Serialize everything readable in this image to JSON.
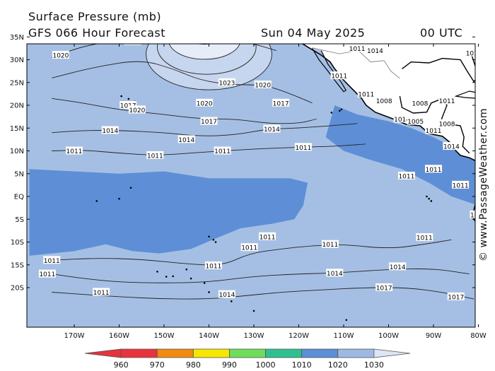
{
  "header": {
    "title": "Surface Pressure (mb)",
    "subtitle": "GFS 066 Hour Forecast",
    "date": "Sun 04 May 2025",
    "time": "00 UTC"
  },
  "credit": "© www.PassageWeather.com",
  "axes": {
    "lat_labels": [
      "35N",
      "30N",
      "25N",
      "20N",
      "15N",
      "10N",
      "5N",
      "EQ",
      "5S",
      "10S",
      "15S",
      "20S"
    ],
    "lon_labels": [
      "170W",
      "160W",
      "150W",
      "140W",
      "130W",
      "120W",
      "110W",
      "100W",
      "90W",
      "80W"
    ]
  },
  "colorbar": {
    "ticks": [
      "960",
      "970",
      "980",
      "990",
      "1000",
      "1010",
      "1020",
      "1030"
    ],
    "colors": [
      "#e8323c",
      "#f08a10",
      "#f7e600",
      "#6fdc5a",
      "#2fc08f",
      "#5b8fd6",
      "#9db9e3",
      "#dce6f5"
    ]
  },
  "map": {
    "colors": {
      "land": "#ffffff",
      "low": "#5e8fd6",
      "mid": "#a5bfe4",
      "high": "#c6d6ee",
      "veryhigh": "#e6edf8"
    },
    "isobar_labels": [
      {
        "t": "1014",
        "lon": -153,
        "lat": 36
      },
      {
        "t": "1017",
        "lon": -157,
        "lat": 34
      },
      {
        "t": "1020",
        "lon": -173,
        "lat": 31
      },
      {
        "t": "1023",
        "lon": -136,
        "lat": 25
      },
      {
        "t": "1020",
        "lon": -128,
        "lat": 24.5
      },
      {
        "t": "1020",
        "lon": -141,
        "lat": 20.5
      },
      {
        "t": "1017",
        "lon": -158,
        "lat": 20
      },
      {
        "t": "1020",
        "lon": -156,
        "lat": 19
      },
      {
        "t": "1017",
        "lon": -124,
        "lat": 20.5
      },
      {
        "t": "1017",
        "lon": -140,
        "lat": 16.5
      },
      {
        "t": "1014",
        "lon": -162,
        "lat": 14.5
      },
      {
        "t": "1014",
        "lon": -126,
        "lat": 14.8
      },
      {
        "t": "1014",
        "lon": -145,
        "lat": 12.5
      },
      {
        "t": "1011",
        "lon": -170,
        "lat": 10
      },
      {
        "t": "1011",
        "lon": -152,
        "lat": 9
      },
      {
        "t": "1011",
        "lon": -137,
        "lat": 10
      },
      {
        "t": "1011",
        "lon": -119,
        "lat": 10.8
      },
      {
        "t": "1011",
        "lon": -111,
        "lat": 26.5
      },
      {
        "t": "1011",
        "lon": -105,
        "lat": 22.5
      },
      {
        "t": "1008",
        "lon": -101,
        "lat": 21
      },
      {
        "t": "1008",
        "lon": -93,
        "lat": 20.5
      },
      {
        "t": "1011",
        "lon": -87,
        "lat": 21
      },
      {
        "t": "1014",
        "lon": -97,
        "lat": 17
      },
      {
        "t": "1005",
        "lon": -94,
        "lat": 16.5
      },
      {
        "t": "1011",
        "lon": -90,
        "lat": 14.5
      },
      {
        "t": "1008",
        "lon": -87,
        "lat": 16
      },
      {
        "t": "1014",
        "lon": -86,
        "lat": 11
      },
      {
        "t": "1011",
        "lon": -90,
        "lat": 6
      },
      {
        "t": "1011",
        "lon": -96,
        "lat": 4.5
      },
      {
        "t": "1011",
        "lon": -84,
        "lat": 2.5
      },
      {
        "t": "1014",
        "lon": -80,
        "lat": -4
      },
      {
        "t": "1011",
        "lon": -113,
        "lat": -10.5
      },
      {
        "t": "1011",
        "lon": -127,
        "lat": -8.8
      },
      {
        "t": "1011",
        "lon": -131,
        "lat": -11.2
      },
      {
        "t": "1011",
        "lon": -92,
        "lat": -9
      },
      {
        "t": "1011",
        "lon": -175,
        "lat": -14
      },
      {
        "t": "1011",
        "lon": -139,
        "lat": -15.2
      },
      {
        "t": "1014",
        "lon": -112,
        "lat": -16.8
      },
      {
        "t": "1014",
        "lon": -98,
        "lat": -15.4
      },
      {
        "t": "1011",
        "lon": -176,
        "lat": -17
      },
      {
        "t": "1011",
        "lon": -164,
        "lat": -21
      },
      {
        "t": "1014",
        "lon": -136,
        "lat": -21.5
      },
      {
        "t": "1017",
        "lon": -101,
        "lat": -20
      },
      {
        "t": "1017",
        "lon": -85,
        "lat": -22
      },
      {
        "t": "1011",
        "lon": -124,
        "lat": 36.2
      },
      {
        "t": "1008",
        "lon": -117,
        "lat": 35.5
      },
      {
        "t": "1011",
        "lon": -111,
        "lat": 35.5
      },
      {
        "t": "1011",
        "lon": -107,
        "lat": 32.5
      },
      {
        "t": "1014",
        "lon": -103,
        "lat": 32
      },
      {
        "t": "1011",
        "lon": -88,
        "lat": 36
      },
      {
        "t": "1008",
        "lon": -83,
        "lat": 36
      },
      {
        "t": "1011",
        "lon": -81,
        "lat": 31.5
      }
    ],
    "isobars": [
      {
        "lon": [
          -165,
          -160,
          -153,
          -146,
          -140,
          -134,
          -128,
          -123
        ],
        "lat": [
          35,
          36.5,
          37,
          37,
          37,
          37,
          37,
          36
        ]
      },
      {
        "lon": [
          -175,
          -168,
          -160,
          -153,
          -147,
          -142,
          -136,
          -130,
          -125
        ],
        "lat": [
          30.5,
          33,
          34.3,
          35,
          35.5,
          35.3,
          34.5,
          33.5,
          32
        ]
      },
      {
        "lon": [
          -175,
          -165,
          -155,
          -148,
          -142,
          -135,
          -128,
          -123,
          -117
        ],
        "lat": [
          26,
          28.5,
          30,
          28,
          25.5,
          24.5,
          24.5,
          23,
          20.5
        ]
      },
      {
        "lon": [
          -175,
          -168,
          -160,
          -150,
          -142,
          -134,
          -127,
          -120,
          -116
        ],
        "lat": [
          21.5,
          20.5,
          19,
          18,
          17,
          17,
          16,
          16,
          17
        ]
      },
      {
        "lon": [
          -175,
          -168,
          -160,
          -150,
          -142,
          -134,
          -127,
          -120,
          -113,
          -107
        ],
        "lat": [
          14,
          14.5,
          14.5,
          14,
          13.2,
          13.5,
          14.8,
          15,
          15.5,
          16
        ]
      },
      {
        "lon": [
          -175,
          -168,
          -160,
          -152,
          -144,
          -137,
          -128,
          -120,
          -112,
          -105
        ],
        "lat": [
          10,
          10.2,
          9.5,
          9,
          9.5,
          10,
          10.5,
          10.8,
          11,
          11.5
        ]
      },
      {
        "lon": [
          -175,
          -165,
          -155,
          -145,
          -137,
          -131,
          -124,
          -117,
          -110,
          -100,
          -92,
          -86
        ],
        "lat": [
          -14,
          -13.5,
          -13.8,
          -14.8,
          -15.2,
          -12.5,
          -11.5,
          -10.8,
          -10.5,
          -11.5,
          -10.5,
          -9.5
        ]
      },
      {
        "lon": [
          -175,
          -168,
          -160,
          -150,
          -140,
          -130,
          -120,
          -112,
          -100,
          -90,
          -82
        ],
        "lat": [
          -17,
          -18,
          -18.8,
          -19,
          -18.8,
          -17.5,
          -17,
          -16.8,
          -16,
          -15.8,
          -17
        ]
      },
      {
        "lon": [
          -175,
          -168,
          -160,
          -150,
          -140,
          -132,
          -124,
          -115,
          -105,
          -96,
          -88,
          -81
        ],
        "lat": [
          -21,
          -21.5,
          -22,
          -22.5,
          -22.5,
          -21.8,
          -21,
          -20.5,
          -20,
          -20,
          -21,
          -22.5
        ]
      }
    ],
    "highs": [
      {
        "lon": -141,
        "lat": 37,
        "rx": 2.5,
        "ry": 1.1
      },
      {
        "lon": -141,
        "lat": 35.8,
        "rx": 5,
        "ry": 2.4
      },
      {
        "lon": -141,
        "lat": 34.3,
        "rx": 8,
        "ry": 4.2
      },
      {
        "lon": -140.5,
        "lat": 32.8,
        "rx": 11,
        "ry": 6.0
      },
      {
        "lon": -140,
        "lat": 31.2,
        "rx": 14,
        "ry": 7.8
      }
    ]
  }
}
